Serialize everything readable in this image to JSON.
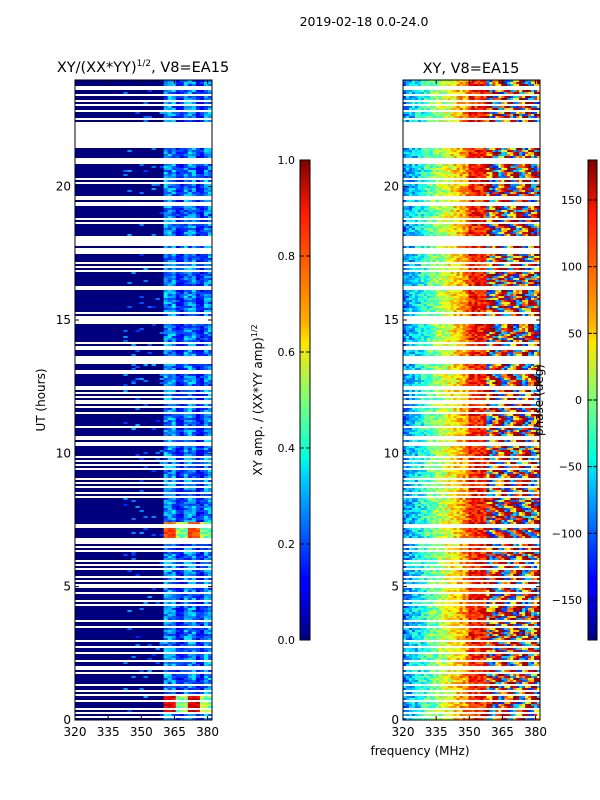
{
  "suptitle": "2019-02-18 0.0-24.0",
  "chart_data": [
    {
      "type": "heatmap",
      "title_main": "XY/(XX*YY)",
      "title_sup": "1/2",
      "title_rest": ", V8=EA15",
      "xlabel": "",
      "ylabel": "UT (hours)",
      "xlim": [
        320,
        382
      ],
      "ylim": [
        0,
        24
      ],
      "xticks": [
        320,
        335,
        350,
        365,
        380
      ],
      "yticks": [
        0,
        5,
        10,
        15,
        20
      ],
      "colorscale": "jet",
      "description": "normalized cross-polarization amplitude, mostly low (~0.05) with enhanced bands 360-382 MHz",
      "hot_spots": [
        {
          "x0": 360,
          "x1": 382,
          "y0": 0.3,
          "y1": 1.0,
          "level": 0.85
        },
        {
          "x0": 360,
          "x1": 382,
          "y0": 6.8,
          "y1": 7.5,
          "level": 0.75
        }
      ],
      "colorbar": {
        "min": 0.0,
        "max": 1.0,
        "ticks": [
          0.0,
          0.2,
          0.4,
          0.6,
          0.8,
          1.0
        ],
        "tick_labels": [
          "0.0",
          "0.2",
          "0.4",
          "0.6",
          "0.8",
          "1.0"
        ],
        "label_main": "XY amp. / (XX*YY amp)",
        "label_sup": "1/2"
      }
    },
    {
      "type": "heatmap",
      "title": "XY, V8=EA15",
      "xlabel": "frequency (MHz)",
      "ylabel": "",
      "xlim": [
        320,
        382
      ],
      "ylim": [
        0,
        24
      ],
      "xticks": [
        320,
        335,
        350,
        365,
        380
      ],
      "yticks": [
        0,
        5,
        10,
        15,
        20
      ],
      "colorscale": "jet",
      "description": "XY phase vs frequency and time, phase ramp from ~-60 deg at 320 MHz to ~150 deg near 350 MHz, noisy above 358 MHz",
      "colorbar": {
        "min": -180,
        "max": 180,
        "ticks": [
          -150,
          -100,
          -50,
          0,
          50,
          100,
          150
        ],
        "tick_labels": [
          "−150",
          "−100",
          "−50",
          "0",
          "50",
          "100",
          "150"
        ],
        "label": "phase (deg)"
      }
    }
  ]
}
